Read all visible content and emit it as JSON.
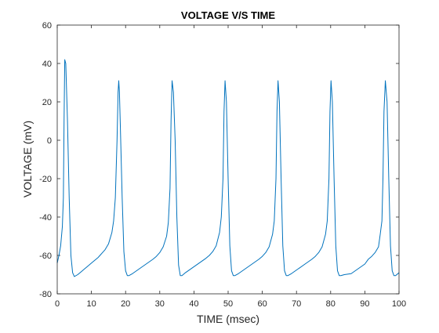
{
  "chart_data": {
    "type": "line",
    "title": "VOLTAGE V/S TIME",
    "xlabel": "TIME (msec)",
    "ylabel": "VOLTAGE (mV)",
    "xlim": [
      0,
      100
    ],
    "ylim": [
      -80,
      60
    ],
    "xticks": [
      0,
      10,
      20,
      30,
      40,
      50,
      60,
      70,
      80,
      90,
      100
    ],
    "yticks": [
      -80,
      -60,
      -40,
      -20,
      0,
      20,
      40,
      60
    ],
    "xtick_labels": [
      "0",
      "10",
      "20",
      "30",
      "40",
      "50",
      "60",
      "70",
      "80",
      "90",
      "100"
    ],
    "ytick_labels": [
      "-80",
      "-60",
      "-40",
      "-20",
      "0",
      "20",
      "40",
      "60"
    ],
    "grid": false,
    "line_color": "#0072BD",
    "series": [
      {
        "x": [
          0,
          0.5,
          1.0,
          1.5,
          1.8,
          2.0,
          2.2,
          2.5,
          3.0,
          3.5,
          4.0,
          4.5,
          5.0,
          6.0,
          7.0,
          8.0,
          9.0,
          10.0,
          11.0,
          12.0,
          13.0,
          14.0,
          15.0,
          16.0,
          16.5,
          17.0,
          17.5,
          17.8,
          18.0,
          18.2,
          18.5,
          19.0,
          19.5,
          20.0,
          20.5,
          21.0,
          22.0,
          24.0,
          26.0,
          28.0,
          29.0,
          30.0,
          31.0,
          32.0,
          32.5,
          33.0,
          33.3,
          33.6,
          34.0,
          34.5,
          35.0,
          35.5,
          36.0,
          36.5,
          37.5,
          39.5,
          41.5,
          43.5,
          44.5,
          45.5,
          46.5,
          47.5,
          48.0,
          48.5,
          48.8,
          49.1,
          49.5,
          50.0,
          50.5,
          51.0,
          51.5,
          52.0,
          53.0,
          55.0,
          57.0,
          59.0,
          60.0,
          61.0,
          62.0,
          63.0,
          63.5,
          64.0,
          64.3,
          64.6,
          65.0,
          65.5,
          66.0,
          66.5,
          67.0,
          67.5,
          68.5,
          70.5,
          72.5,
          74.5,
          75.5,
          76.5,
          77.5,
          78.5,
          79.0,
          79.5,
          79.8,
          80.1,
          80.5,
          81.0,
          81.5,
          82.0,
          82.5,
          83.0,
          84.0,
          86.0,
          88.0,
          90.0,
          91.0,
          92.0,
          93.0,
          94.0,
          94.5,
          95.0,
          95.3,
          95.6,
          96.0,
          96.5,
          97.0,
          97.5,
          98.0,
          98.5,
          99.0,
          100.0
        ],
        "y": [
          -64,
          -60,
          -55,
          -45,
          -30,
          10,
          42,
          40,
          10,
          -30,
          -60,
          -69,
          -71,
          -70,
          -68.5,
          -67,
          -65.5,
          -64,
          -62.5,
          -61,
          -59,
          -57,
          -54,
          -48,
          -42,
          -30,
          0,
          25,
          31,
          25,
          5,
          -30,
          -58,
          -68,
          -70.5,
          -70.5,
          -69.5,
          -67,
          -64.5,
          -62,
          -60.5,
          -58.5,
          -55.5,
          -50,
          -43,
          -25,
          10,
          31,
          25,
          0,
          -40,
          -65,
          -70.5,
          -70.5,
          -69,
          -66.5,
          -64,
          -61.5,
          -60,
          -58,
          -55,
          -48,
          -40,
          -20,
          15,
          31,
          20,
          -20,
          -55,
          -68,
          -70.5,
          -70.5,
          -69.5,
          -67,
          -64.5,
          -62,
          -60.5,
          -58.5,
          -55.5,
          -49,
          -42,
          -20,
          15,
          31,
          20,
          -20,
          -55,
          -68,
          -70.5,
          -70.5,
          -69.5,
          -67,
          -64.5,
          -62,
          -60.5,
          -58.5,
          -55.5,
          -49,
          -42,
          -20,
          15,
          31,
          20,
          -20,
          -55,
          -68,
          -70.5,
          -70.5,
          -70,
          -69.5,
          -67,
          -64.5,
          -62,
          -60.5,
          -58.5,
          -55.5,
          -49,
          -42,
          -20,
          15,
          31,
          20,
          -20,
          -55,
          -68,
          -70.5,
          -70.5,
          -69
        ]
      }
    ]
  }
}
